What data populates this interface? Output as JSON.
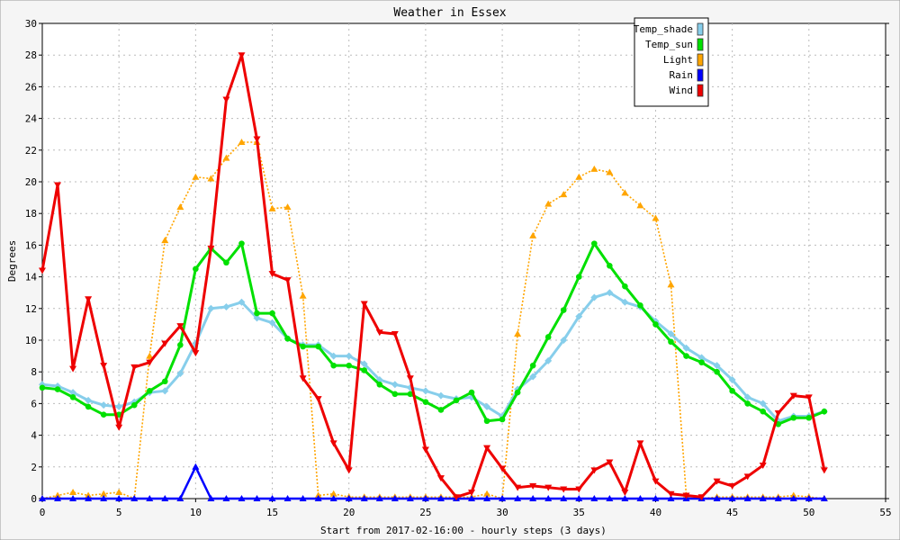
{
  "chart_data": {
    "type": "line",
    "title": "Weather in Essex",
    "xlabel": "Start from 2017-02-16:00 - hourly steps (3 days)",
    "ylabel": "Degrees",
    "xlim": [
      0,
      55
    ],
    "ylim": [
      0,
      30
    ],
    "x_ticks": [
      0,
      5,
      10,
      15,
      20,
      25,
      30,
      35,
      40,
      45,
      50,
      55
    ],
    "y_ticks": [
      0,
      2,
      4,
      6,
      8,
      10,
      12,
      14,
      16,
      18,
      20,
      22,
      24,
      26,
      28,
      30
    ],
    "grid": true,
    "legend_position": "top-right",
    "x": [
      0,
      1,
      2,
      3,
      4,
      5,
      6,
      7,
      8,
      9,
      10,
      11,
      12,
      13,
      14,
      15,
      16,
      17,
      18,
      19,
      20,
      21,
      22,
      23,
      24,
      25,
      26,
      27,
      28,
      29,
      30,
      31,
      32,
      33,
      34,
      35,
      36,
      37,
      38,
      39,
      40,
      41,
      42,
      43,
      44,
      45,
      46,
      47,
      48,
      49,
      50,
      51
    ],
    "series": [
      {
        "name": "Temp_shade",
        "color": "#87ceeb",
        "line_style": "solid",
        "marker": "diamond",
        "values": [
          7.2,
          7.1,
          6.7,
          6.2,
          5.9,
          5.8,
          6.1,
          6.7,
          6.8,
          7.9,
          9.8,
          12.0,
          12.1,
          12.4,
          11.4,
          11.1,
          10.1,
          9.7,
          9.7,
          9.0,
          9.0,
          8.5,
          7.5,
          7.2,
          7.0,
          6.8,
          6.5,
          6.3,
          6.4,
          5.8,
          5.2,
          6.9,
          7.7,
          8.7,
          10.0,
          11.5,
          12.7,
          13.0,
          12.4,
          12.1,
          11.2,
          10.4,
          9.5,
          8.9,
          8.4,
          7.5,
          6.4,
          6.0,
          4.9,
          5.2,
          5.2,
          5.5
        ]
      },
      {
        "name": "Temp_sun",
        "color": "#00e000",
        "line_style": "solid",
        "marker": "circle",
        "values": [
          7.0,
          6.9,
          6.4,
          5.8,
          5.3,
          5.3,
          5.9,
          6.8,
          7.4,
          9.7,
          14.5,
          15.8,
          14.9,
          16.1,
          11.7,
          11.7,
          10.1,
          9.6,
          9.6,
          8.4,
          8.4,
          8.1,
          7.2,
          6.6,
          6.6,
          6.1,
          5.6,
          6.2,
          6.7,
          4.9,
          5.0,
          6.7,
          8.4,
          10.2,
          11.9,
          14.0,
          16.1,
          14.7,
          13.4,
          12.2,
          11.0,
          9.9,
          9.0,
          8.6,
          8.0,
          6.8,
          6.0,
          5.5,
          4.7,
          5.1,
          5.1,
          5.5
        ]
      },
      {
        "name": "Light",
        "color": "#ffa500",
        "line_style": "dotted",
        "marker": "triangle-up",
        "values": [
          0.0,
          0.2,
          0.4,
          0.2,
          0.3,
          0.4,
          0.0,
          9.0,
          16.3,
          18.4,
          20.3,
          20.2,
          21.5,
          22.5,
          22.5,
          18.3,
          18.4,
          12.8,
          0.2,
          0.3,
          0.1,
          0.1,
          0.1,
          0.1,
          0.1,
          0.1,
          0.1,
          0.1,
          0.1,
          0.3,
          0.0,
          10.4,
          16.6,
          18.6,
          19.2,
          20.3,
          20.8,
          20.6,
          19.3,
          18.5,
          17.7,
          13.5,
          0.2,
          0.0,
          0.1,
          0.1,
          0.1,
          0.1,
          0.1,
          0.2,
          0.1,
          0.0
        ]
      },
      {
        "name": "Rain",
        "color": "#0000ff",
        "line_style": "solid",
        "marker": "triangle-up",
        "values": [
          0,
          0,
          0,
          0,
          0,
          0,
          0,
          0,
          0,
          0,
          2.0,
          0,
          0,
          0,
          0,
          0,
          0,
          0,
          0,
          0,
          0,
          0,
          0,
          0,
          0,
          0,
          0,
          0,
          0,
          0,
          0,
          0,
          0,
          0,
          0,
          0,
          0,
          0,
          0,
          0,
          0,
          0,
          0,
          0,
          0,
          0,
          0,
          0,
          0,
          0,
          0,
          0
        ]
      },
      {
        "name": "Wind",
        "color": "#ee0000",
        "line_style": "solid",
        "marker": "triangle-down",
        "values": [
          14.4,
          19.8,
          8.2,
          12.6,
          8.4,
          4.5,
          8.3,
          8.6,
          9.8,
          10.9,
          9.2,
          15.8,
          25.2,
          28.0,
          22.7,
          14.2,
          13.8,
          7.6,
          6.3,
          3.5,
          1.8,
          12.3,
          10.5,
          10.4,
          7.6,
          3.1,
          1.3,
          0.1,
          0.4,
          3.2,
          1.9,
          0.7,
          0.8,
          0.7,
          0.6,
          0.6,
          1.8,
          2.3,
          0.4,
          3.5,
          1.1,
          0.3,
          0.2,
          0.1,
          1.1,
          0.8,
          1.4,
          2.1,
          5.4,
          6.5,
          6.4,
          1.8
        ]
      }
    ]
  }
}
